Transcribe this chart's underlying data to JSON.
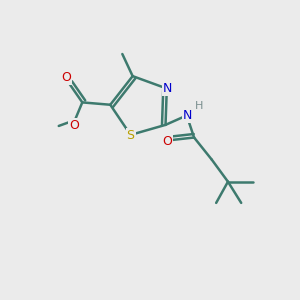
{
  "bg_color": "#ebebeb",
  "bond_color": "#3d7a6e",
  "bond_width": 1.8,
  "atom_colors": {
    "S": "#b8a000",
    "N": "#0000cc",
    "O": "#cc0000",
    "H": "#7a8f8f",
    "C": "#3d7a6e"
  },
  "figsize": [
    3.0,
    3.0
  ],
  "dpi": 100,
  "xlim": [
    0,
    10
  ],
  "ylim": [
    0,
    10
  ]
}
